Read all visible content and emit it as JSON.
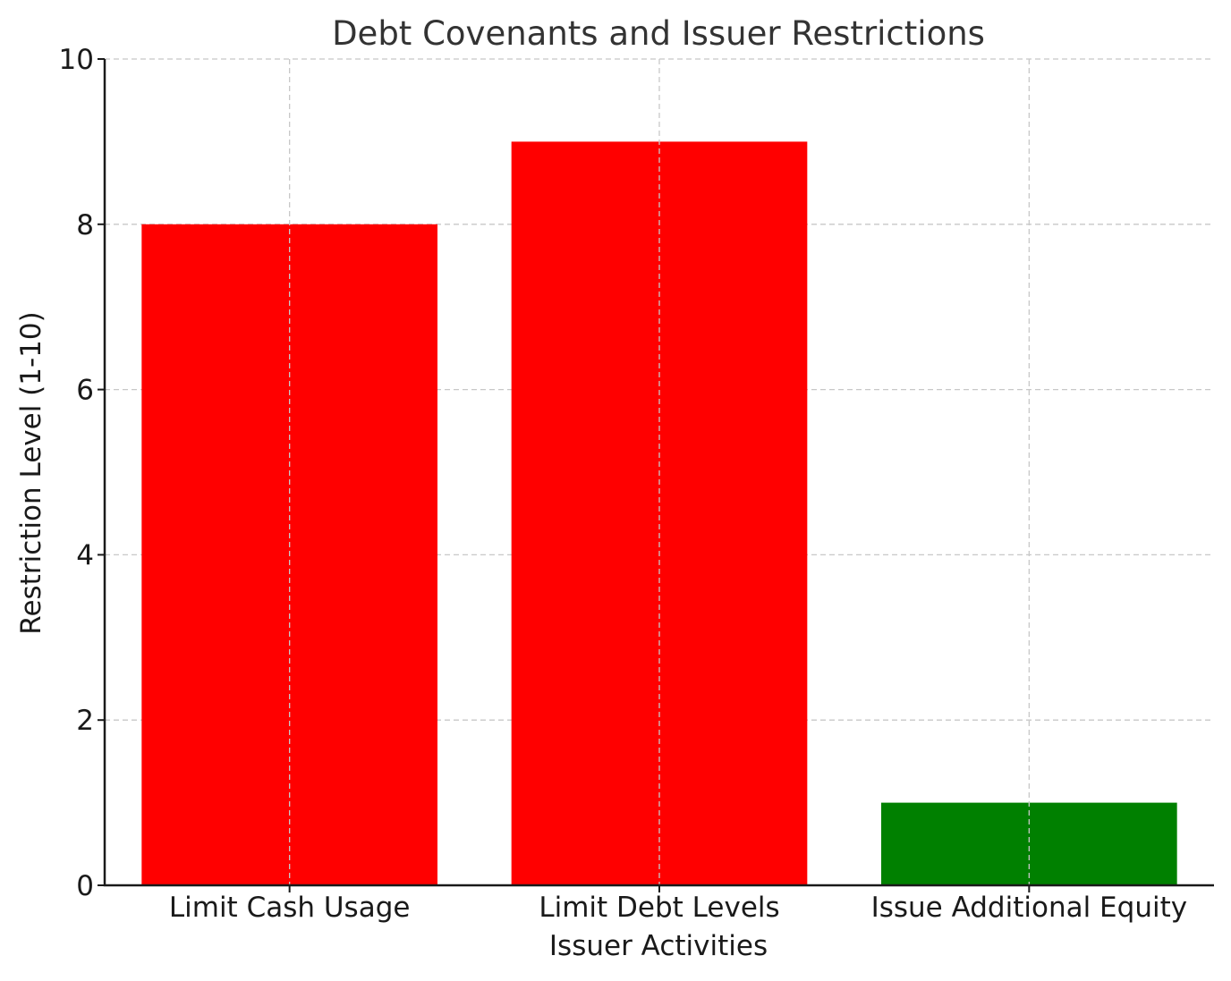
{
  "chart_data": {
    "type": "bar",
    "title": "Debt Covenants and Issuer Restrictions",
    "xlabel": "Issuer Activities",
    "ylabel": "Restriction Level (1-10)",
    "categories": [
      "Limit Cash Usage",
      "Limit Debt Levels",
      "Issue Additional Equity"
    ],
    "values": [
      8,
      9,
      1
    ],
    "colors": [
      "#ff0000",
      "#ff0000",
      "#008000"
    ],
    "ylim": [
      0,
      10
    ],
    "yticks": [
      0,
      2,
      4,
      6,
      8,
      10
    ],
    "grid": true,
    "legend": "none"
  }
}
